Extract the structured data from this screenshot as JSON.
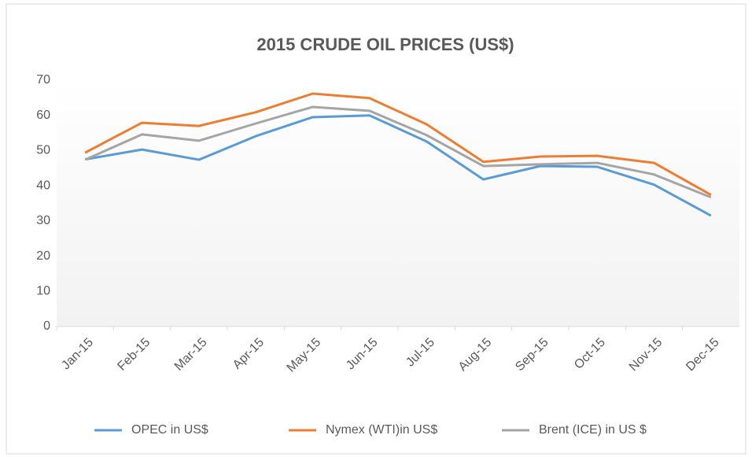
{
  "chart_data": {
    "type": "line",
    "title": "2015 CRUDE OIL PRICES (US$)",
    "categories": [
      "Jan-15",
      "Feb-15",
      "Mar-15",
      "Apr-15",
      "May-15",
      "Jun-15",
      "Jul-15",
      "Aug-15",
      "Sep-15",
      "Oct-15",
      "Nov-15",
      "Dec-15"
    ],
    "series": [
      {
        "name": "OPEC in US$",
        "color": "#5b9bd5",
        "values": [
          47.5,
          50.3,
          47.4,
          54.1,
          59.5,
          60.0,
          52.6,
          41.8,
          45.6,
          45.4,
          40.3,
          31.5
        ]
      },
      {
        "name": "Nymex (WTI)in US$",
        "color": "#ed7d31",
        "values": [
          49.4,
          57.9,
          57.0,
          60.9,
          66.2,
          64.9,
          57.5,
          46.8,
          48.3,
          48.5,
          46.5,
          37.4
        ]
      },
      {
        "name": "Brent (ICE) in US $",
        "color": "#a5a5a5",
        "values": [
          47.4,
          54.6,
          52.8,
          57.7,
          62.4,
          61.3,
          54.4,
          45.6,
          46.1,
          46.5,
          43.2,
          36.7
        ]
      }
    ],
    "ylim": [
      0,
      70
    ],
    "yticks": [
      0,
      10,
      20,
      30,
      40,
      50,
      60,
      70
    ],
    "grid": false,
    "legend": "bottom"
  }
}
